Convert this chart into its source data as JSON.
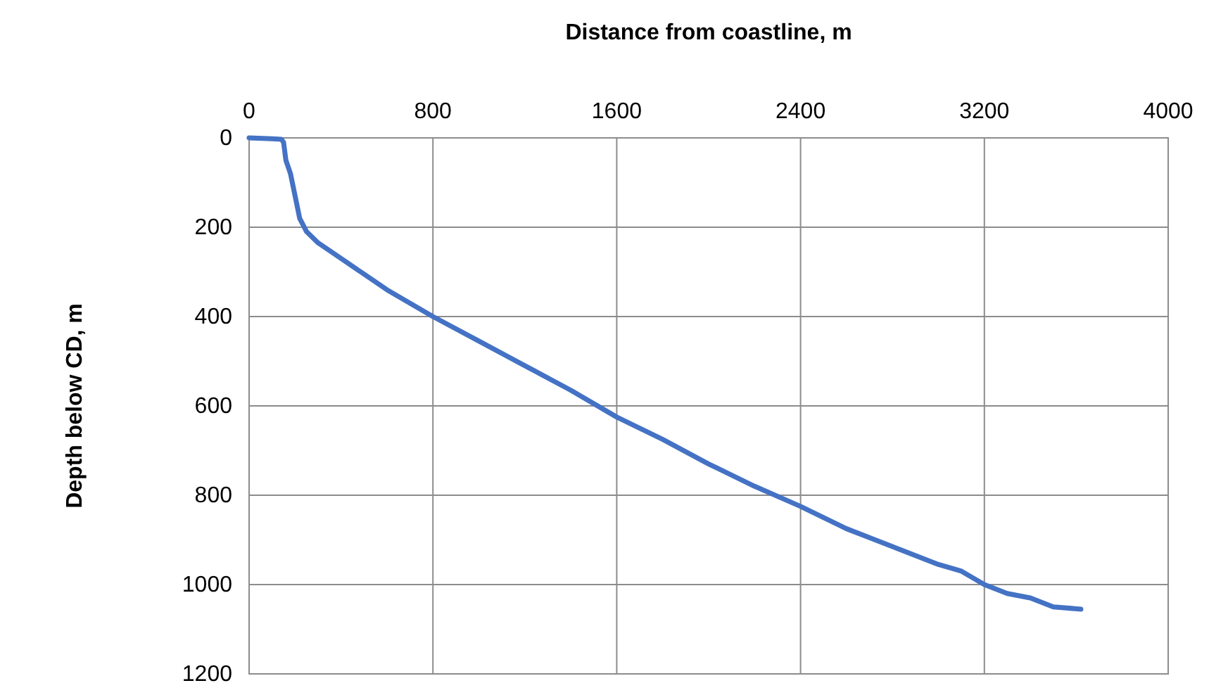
{
  "chart_data": {
    "type": "line",
    "xlabel": "Distance from coastline, m",
    "ylabel": "Depth below CD, m",
    "x": [
      0,
      100,
      140,
      150,
      160,
      180,
      200,
      220,
      250,
      300,
      400,
      500,
      600,
      700,
      800,
      1000,
      1200,
      1400,
      1600,
      1800,
      2000,
      2200,
      2400,
      2600,
      2800,
      3000,
      3100,
      3200,
      3300,
      3400,
      3500,
      3620
    ],
    "series": [
      {
        "color": "#4472c4",
        "values": [
          0,
          2,
          3,
          10,
          50,
          80,
          130,
          180,
          210,
          235,
          270,
          305,
          340,
          370,
          400,
          455,
          510,
          565,
          625,
          675,
          730,
          780,
          825,
          875,
          915,
          955,
          970,
          1000,
          1020,
          1030,
          1050,
          1055
        ]
      }
    ],
    "xlim": [
      0,
      4000
    ],
    "xticks": [
      0,
      800,
      1600,
      2400,
      3200,
      4000
    ],
    "ylim": [
      1200,
      0
    ],
    "yticks": [
      0,
      200,
      400,
      600,
      800,
      1000,
      1200
    ],
    "grid": true,
    "line_style": "solid"
  }
}
